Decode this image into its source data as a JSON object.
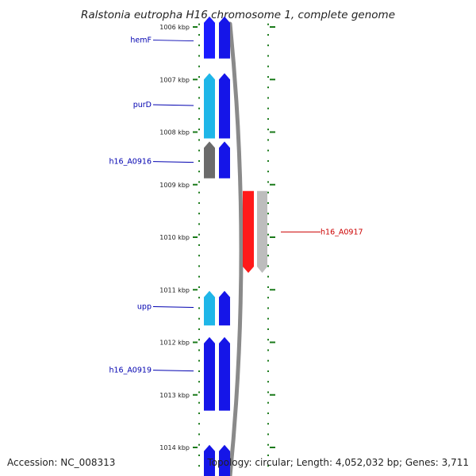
{
  "title": "Ralstonia eutropha H16 chromosome 1, complete genome",
  "ruler": {
    "ticks": [
      "1006 kbp",
      "1007 kbp",
      "1008 kbp",
      "1009 kbp",
      "1010 kbp",
      "1011 kbp",
      "1012 kbp",
      "1013 kbp",
      "1014 kbp"
    ],
    "start_kbp": 1006,
    "end_kbp": 1014
  },
  "genes": [
    {
      "label": "hemF",
      "strand": "plus",
      "start_kbp": 1005.8,
      "end_kbp": 1006.6,
      "cds_color": "#1a1aff",
      "gene_color": "#1515e8",
      "label_color": "#0000b0",
      "label_kbp": 1006.25
    },
    {
      "label": "purD",
      "strand": "plus",
      "start_kbp": 1006.88,
      "end_kbp": 1008.12,
      "cds_color": "#1fb6e8",
      "gene_color": "#1515e8",
      "label_color": "#0000b0",
      "label_kbp": 1007.48
    },
    {
      "label": "h16_A0916",
      "strand": "plus",
      "start_kbp": 1008.18,
      "end_kbp": 1008.88,
      "cds_color": "#6b6b6b",
      "gene_color": "#1515e8",
      "label_color": "#0000b0",
      "label_kbp": 1008.56
    },
    {
      "label": "h16_A0917",
      "strand": "minus",
      "start_kbp": 1009.12,
      "end_kbp": 1010.68,
      "cds_color": "#ff1a1a",
      "gene_color": "#bdbdbd",
      "label_color": "#cc0000",
      "label_kbp": 1009.9
    },
    {
      "label": "upp",
      "strand": "plus",
      "start_kbp": 1011.02,
      "end_kbp": 1011.68,
      "cds_color": "#1fb6e8",
      "gene_color": "#1515e8",
      "label_color": "#0000b0",
      "label_kbp": 1011.32
    },
    {
      "label": "h16_A0919",
      "strand": "plus",
      "start_kbp": 1011.9,
      "end_kbp": 1013.3,
      "cds_color": "#1515e8",
      "gene_color": "#1515e8",
      "label_color": "#0000b0",
      "label_kbp": 1012.53
    },
    {
      "label": "",
      "strand": "plus",
      "start_kbp": 1013.95,
      "end_kbp": 1014.6,
      "cds_color": "#1515e8",
      "gene_color": "#1515e8",
      "label_color": "#0000b0",
      "label_kbp": 1014.2
    }
  ],
  "colors": {
    "tick": "#1a7a1a",
    "backbone": "#8a8a8a"
  },
  "footer": {
    "accession": "Accession: NC_008313",
    "topology": "Topology: circular; Length: 4,052,032 bp; Genes: 3,711"
  }
}
